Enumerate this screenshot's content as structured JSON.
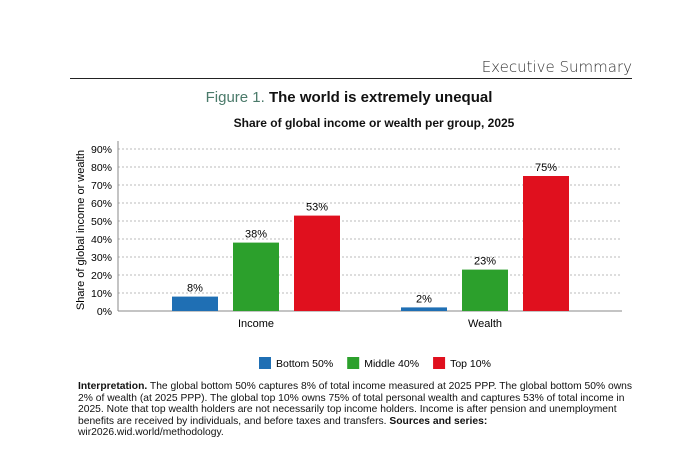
{
  "header": {
    "section": "Executive Summary"
  },
  "figure": {
    "number": "Figure 1.",
    "title": "The world is extremely unequal"
  },
  "chart_data": {
    "type": "bar",
    "title": "Share of global income or wealth per group, 2025",
    "ylabel": "Share of global income or wealth",
    "xlabel": "",
    "categories": [
      "Income",
      "Wealth"
    ],
    "series": [
      {
        "name": "Bottom 50%",
        "color": "#1f6fb4",
        "values": [
          8,
          2
        ],
        "labels": [
          "8%",
          "2%"
        ]
      },
      {
        "name": "Middle 40%",
        "color": "#2ca02c",
        "values": [
          38,
          23
        ],
        "labels": [
          "38%",
          "23%"
        ]
      },
      {
        "name": "Top 10%",
        "color": "#e0101e",
        "values": [
          53,
          75
        ],
        "labels": [
          "53%",
          "75%"
        ]
      }
    ],
    "ylim": [
      0,
      90
    ],
    "yticks": [
      "0%",
      "10%",
      "20%",
      "30%",
      "40%",
      "50%",
      "60%",
      "70%",
      "80%",
      "90%"
    ],
    "grid": true,
    "legend": "bottom"
  },
  "interpretation": {
    "label": "Interpretation.",
    "text": " The global bottom 50% captures 8% of total income measured at 2025 PPP. The global bottom 50% owns 2% of wealth (at 2025 PPP). The global top 10% owns 75% of total personal wealth and captures 53% of total income in 2025. Note that top wealth holders are not necessarily top income holders. Income is after pension and unemployment benefits are received by individuals, and before taxes and transfers. ",
    "sources_label": "Sources and series:",
    "sources": " wir2026.wid.world/methodology."
  }
}
